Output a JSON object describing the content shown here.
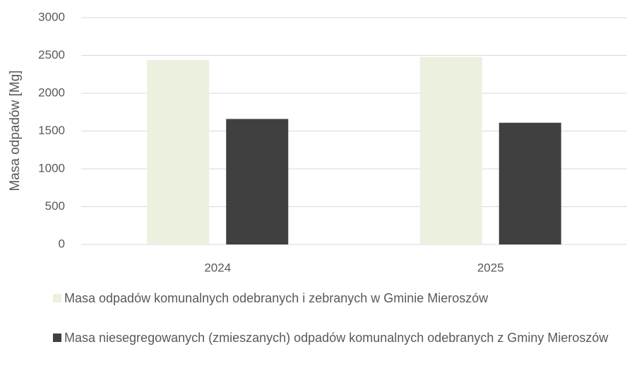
{
  "chart_data": {
    "type": "bar",
    "y_label": "Masa odpadów [Mg]",
    "categories": [
      "2024",
      "2025"
    ],
    "series": [
      {
        "name": "Masa odpadów komunalnych odebranych i zebranych w Gminie Mieroszów",
        "color": "#ebf0df",
        "values": [
          2440,
          2480
        ]
      },
      {
        "name": "Masa niesegregowanych (zmieszanych) odpadów komunalnych odebranych z Gminy Mieroszów",
        "color": "#404040",
        "values": [
          1660,
          1610
        ]
      }
    ],
    "ylim": [
      0,
      3000
    ],
    "yticks": [
      0,
      500,
      1000,
      1500,
      2000,
      2500,
      3000
    ],
    "grid": true,
    "legend": "bottom"
  }
}
